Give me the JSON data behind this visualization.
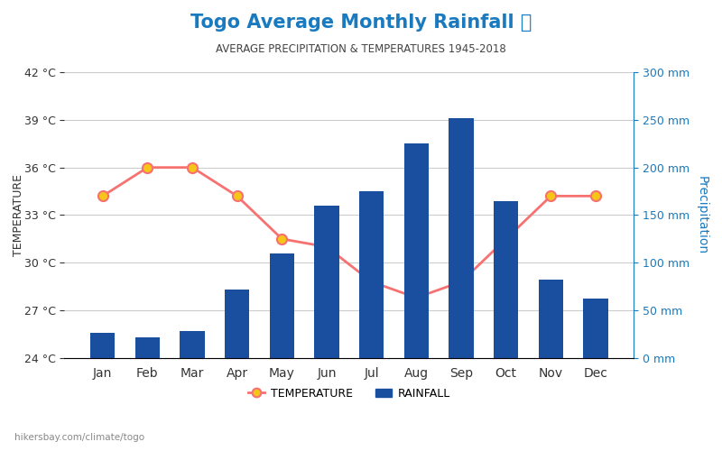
{
  "months": [
    "Jan",
    "Feb",
    "Mar",
    "Apr",
    "May",
    "Jun",
    "Jul",
    "Aug",
    "Sep",
    "Oct",
    "Nov",
    "Dec"
  ],
  "rainfall_mm": [
    26,
    22,
    28,
    72,
    110,
    160,
    175,
    225,
    252,
    165,
    82,
    62
  ],
  "temperature_c": [
    34.2,
    36.0,
    36.0,
    34.2,
    31.5,
    31.0,
    28.8,
    27.8,
    28.8,
    31.5,
    34.2,
    34.2
  ],
  "title": "Togo Average Monthly Rainfall 🌧",
  "subtitle": "AVERAGE PRECIPITATION & TEMPERATURES 1945-2018",
  "title_color": "#1a7abf",
  "subtitle_color": "#444444",
  "bar_color": "#1a4fa0",
  "line_color": "#f87171",
  "marker_face": "#f5c518",
  "marker_edge": "#f87171",
  "left_ylabel": "TEMPERATURE",
  "right_ylabel": "Precipitation",
  "left_axis_color": "#333333",
  "right_axis_color": "#1a7abf",
  "temp_yticks": [
    24,
    27,
    30,
    33,
    36,
    39,
    42
  ],
  "precip_yticks": [
    0,
    50,
    100,
    150,
    200,
    250,
    300
  ],
  "temp_ylim": [
    24,
    42
  ],
  "precip_ylim": [
    0,
    300
  ],
  "background_color": "#ffffff",
  "grid_color": "#cccccc",
  "watermark": "hikersbay.com/climate/togo"
}
